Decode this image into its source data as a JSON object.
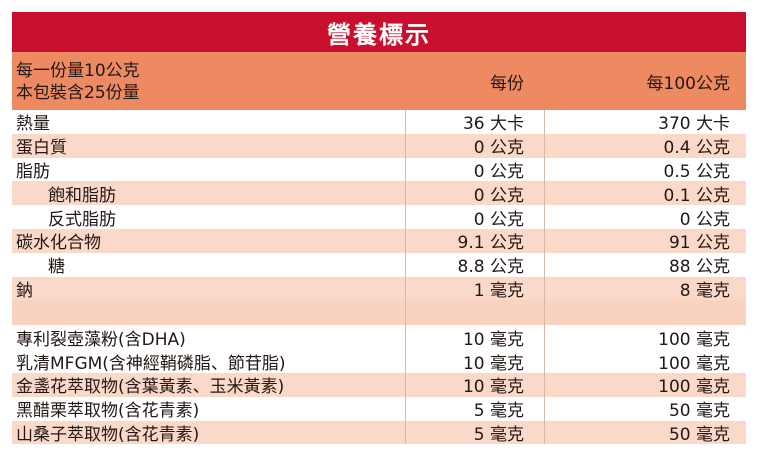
{
  "title": "營養標示",
  "header": {
    "serving_size": "每一份量10公克",
    "servings_per_pack": "本包裝含25份量",
    "col_per_serving": "每份",
    "col_per_100": "每100公克"
  },
  "nutrients": [
    {
      "name": "熱量",
      "per_serving": "36 大卡",
      "per_100": "370 大卡",
      "indent": false,
      "shade": "white"
    },
    {
      "name": "蛋白質",
      "per_serving": "0 公克",
      "per_100": "0.4 公克",
      "indent": false,
      "shade": "pink"
    },
    {
      "name": "脂肪",
      "per_serving": "0 公克",
      "per_100": "0.5 公克",
      "indent": false,
      "shade": "white"
    },
    {
      "name": "飽和脂肪",
      "per_serving": "0 公克",
      "per_100": "0.1 公克",
      "indent": true,
      "shade": "pink"
    },
    {
      "name": "反式脂肪",
      "per_serving": "0 公克",
      "per_100": "0 公克",
      "indent": true,
      "shade": "white"
    },
    {
      "name": "碳水化合物",
      "per_serving": "9.1 公克",
      "per_100": "91 公克",
      "indent": false,
      "shade": "pink"
    },
    {
      "name": "糖",
      "per_serving": "8.8 公克",
      "per_100": "88 公克",
      "indent": true,
      "shade": "white"
    },
    {
      "name": "鈉",
      "per_serving": "1 毫克",
      "per_100": "8 毫克",
      "indent": false,
      "shade": "pink"
    }
  ],
  "ingredients": [
    {
      "name": "專利裂壺藻粉(含DHA)",
      "per_serving": "10 毫克",
      "per_100": "100 毫克",
      "shade": "white"
    },
    {
      "name": "乳清MFGM(含神經鞘磷脂、節苷脂)",
      "per_serving": "10 毫克",
      "per_100": "100 毫克",
      "shade": "white"
    },
    {
      "name": "金盞花萃取物(含葉黃素、玉米黃素)",
      "per_serving": "10 毫克",
      "per_100": "100 毫克",
      "shade": "pink"
    },
    {
      "name": "黑醋栗萃取物(含花青素)",
      "per_serving": "5 毫克",
      "per_100": "50 毫克",
      "shade": "white"
    },
    {
      "name": "山桑子萃取物(含花青素)",
      "per_serving": "5 毫克",
      "per_100": "50 毫克",
      "shade": "pink"
    }
  ],
  "colors": {
    "title_bg": "#c8102e",
    "header_bg": "#ee8a62",
    "row_shade": "#fad9c8",
    "text": "#231815"
  }
}
